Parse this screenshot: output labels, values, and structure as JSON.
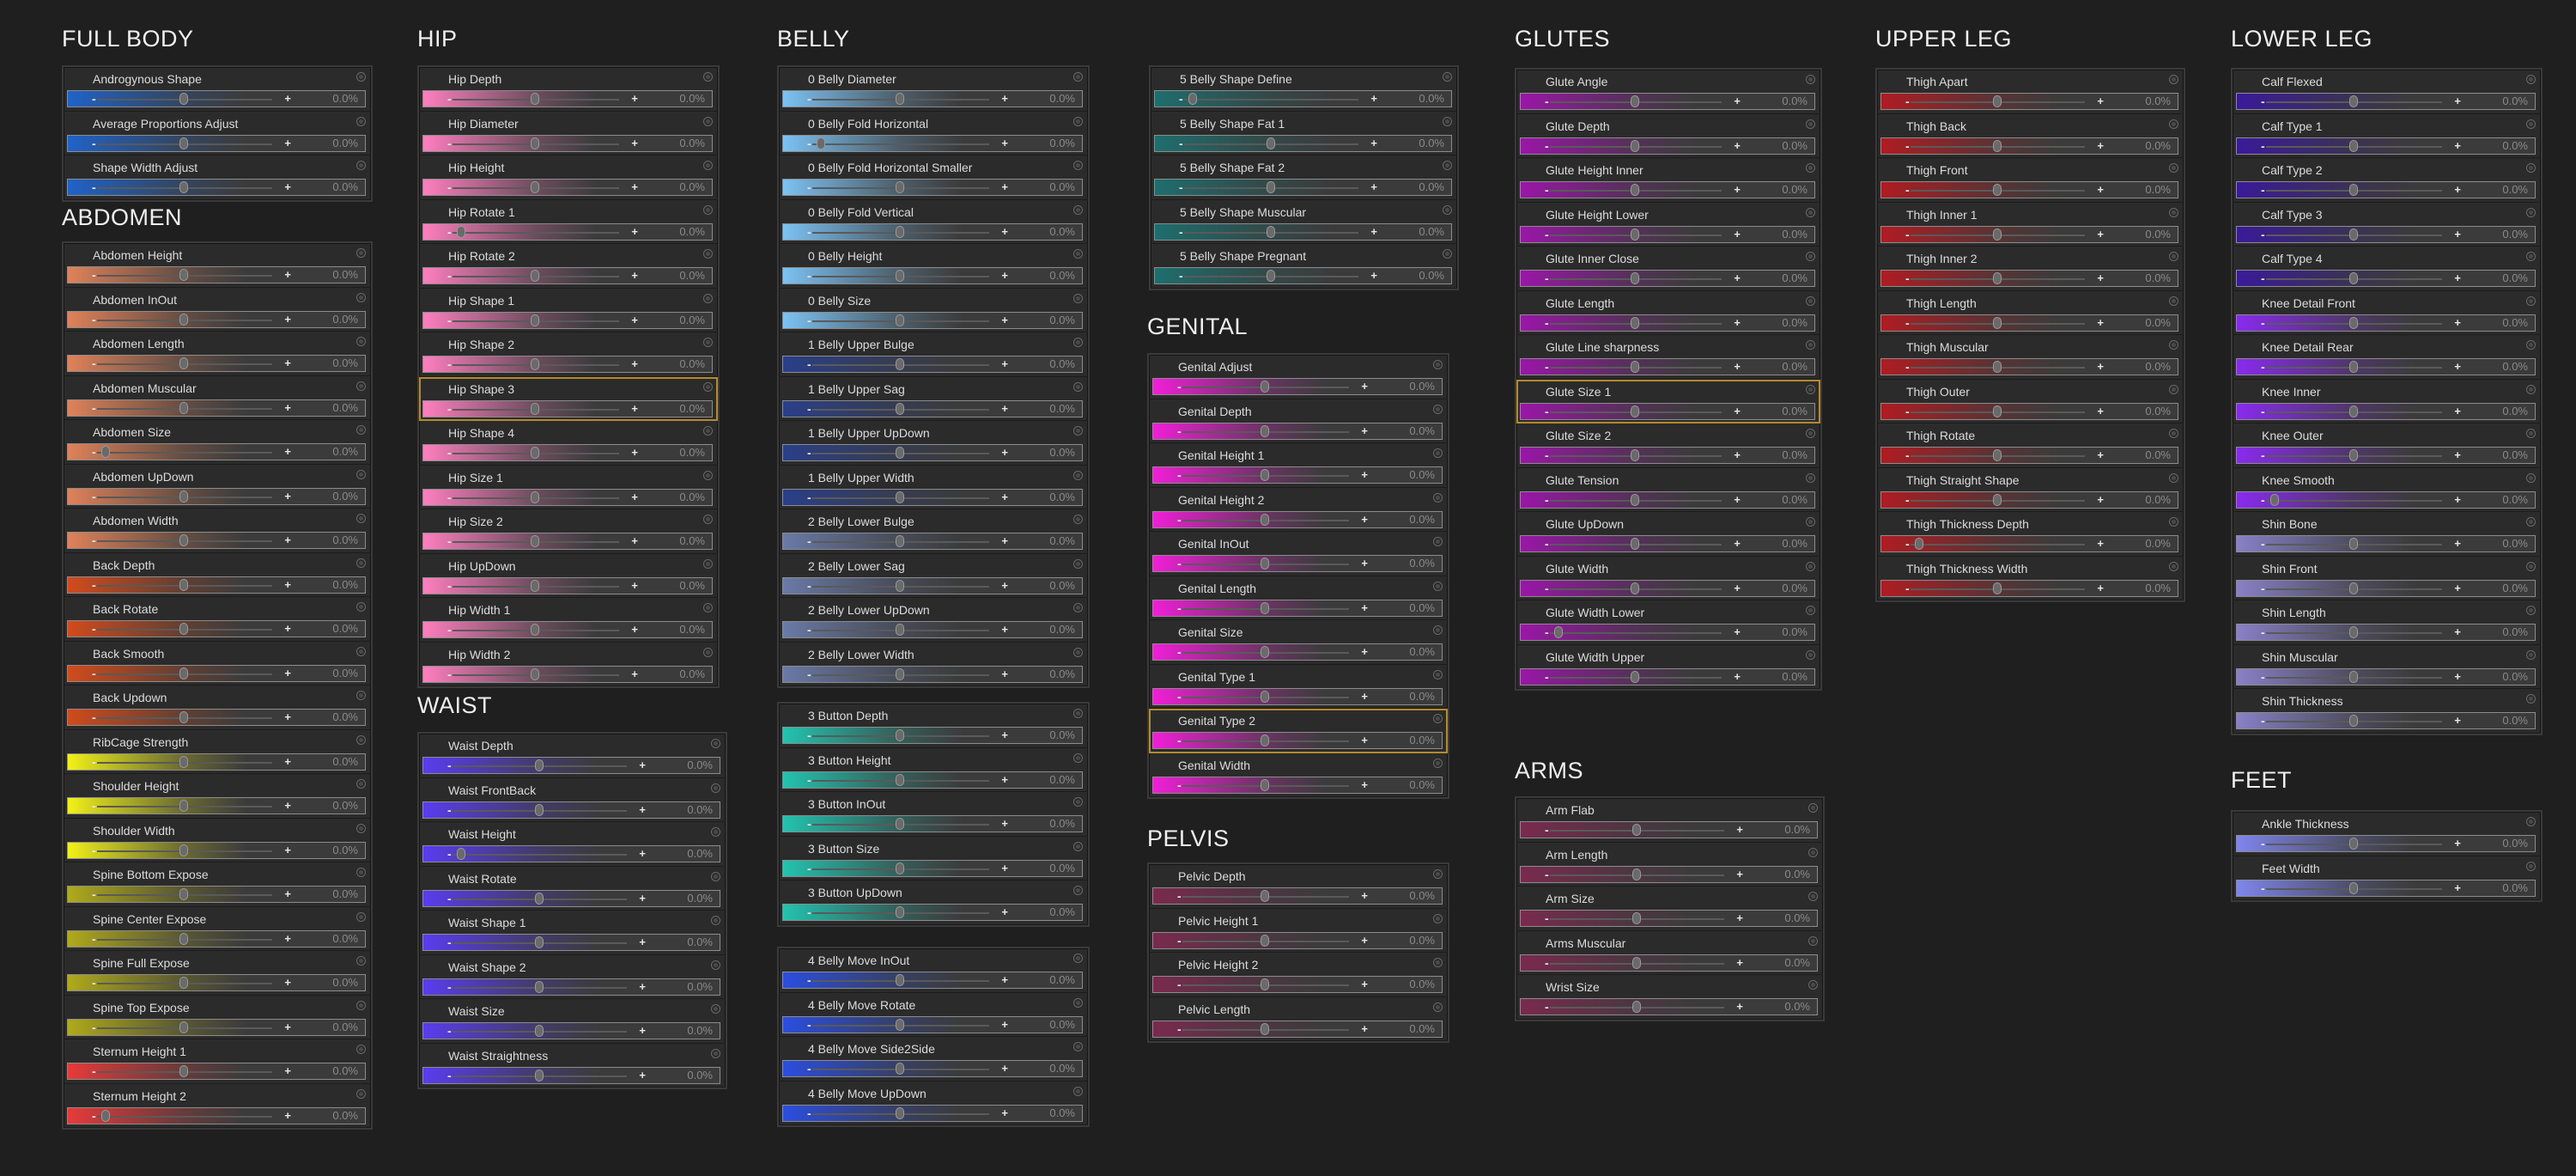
{
  "ui": {
    "default_value": "0.0%"
  },
  "groups": [
    {
      "id": "full-body",
      "title": "FULL BODY",
      "color": "#1f63c9",
      "panels": [
        {
          "rows": [
            "Androgynous Shape",
            "Average Proportions Adjust",
            "Shape Width Adjust"
          ]
        }
      ]
    },
    {
      "id": "abdomen",
      "title": "ABDOMEN",
      "panels": [
        {
          "rows": [
            {
              "label": "Abdomen Height",
              "color": "#e0825a"
            },
            {
              "label": "Abdomen InOut",
              "color": "#e0825a"
            },
            {
              "label": "Abdomen Length",
              "color": "#e0825a"
            },
            {
              "label": "Abdomen Muscular",
              "color": "#e0825a"
            },
            {
              "label": "Abdomen Size",
              "color": "#e0825a"
            },
            {
              "label": "Abdomen UpDown",
              "color": "#e0825a"
            },
            {
              "label": "Abdomen Width",
              "color": "#e0825a"
            },
            {
              "label": "Back Depth",
              "color": "#d24b1c"
            },
            {
              "label": "Back Rotate",
              "color": "#d24b1c"
            },
            {
              "label": "Back Smooth",
              "color": "#d24b1c"
            },
            {
              "label": "Back Updown",
              "color": "#d24b1c"
            },
            {
              "label": "RibCage Strength",
              "color": "#f2f218"
            },
            {
              "label": "Shoulder Height",
              "color": "#f2f218"
            },
            {
              "label": "Shoulder Width",
              "color": "#f2f218"
            },
            {
              "label": "Spine Bottom Expose",
              "color": "#b0aa1a"
            },
            {
              "label": "Spine Center Expose",
              "color": "#b0aa1a"
            },
            {
              "label": "Spine Full Expose",
              "color": "#b0aa1a"
            },
            {
              "label": "Spine Top Expose",
              "color": "#b0aa1a"
            },
            {
              "label": "Sternum Height 1",
              "color": "#e83a3a"
            },
            {
              "label": "Sternum Height 2",
              "color": "#e83a3a"
            }
          ]
        }
      ]
    },
    {
      "id": "hip",
      "title": "HIP",
      "color": "#ff7fc0",
      "panels": [
        {
          "rows": [
            "Hip Depth",
            "Hip Diameter",
            "Hip Height",
            "Hip Rotate 1",
            "Hip Rotate 2",
            "Hip Shape 1",
            "Hip Shape 2",
            "Hip Shape 3",
            "Hip Shape 4",
            "Hip Size 1",
            "Hip Size 2",
            "Hip UpDown",
            "Hip Width 1",
            "Hip Width 2"
          ],
          "highlight": 7
        }
      ]
    },
    {
      "id": "waist",
      "title": "WAIST",
      "color": "#5a3cf0",
      "panels": [
        {
          "rows": [
            "Waist Depth",
            "Waist FrontBack",
            "Waist Height",
            "Waist Rotate",
            "Waist Shape 1",
            "Waist Shape 2",
            "Waist Size",
            "Waist Straightness"
          ]
        }
      ]
    },
    {
      "id": "belly",
      "title": "BELLY",
      "panels": [
        {
          "rows": [
            {
              "label": "0 Belly Diameter",
              "color": "#7cc3f5"
            },
            {
              "label": "0 Belly Fold Horizontal",
              "color": "#7cc3f5"
            },
            {
              "label": "0 Belly Fold Horizontal Smaller",
              "color": "#7cc3f5"
            },
            {
              "label": "0 Belly Fold Vertical",
              "color": "#7cc3f5"
            },
            {
              "label": "0 Belly Height",
              "color": "#7cc3f5"
            },
            {
              "label": "0 Belly Size",
              "color": "#7cc3f5"
            },
            {
              "label": "1 Belly Upper Bulge",
              "color": "#2a3f8a"
            },
            {
              "label": "1 Belly Upper Sag",
              "color": "#2a3f8a"
            },
            {
              "label": "1 Belly Upper UpDown",
              "color": "#2a3f8a"
            },
            {
              "label": "1 Belly Upper Width",
              "color": "#2a3f8a"
            },
            {
              "label": "2 Belly Lower Bulge",
              "color": "#6a7aa8"
            },
            {
              "label": "2 Belly Lower Sag",
              "color": "#6a7aa8"
            },
            {
              "label": "2 Belly Lower UpDown",
              "color": "#6a7aa8"
            },
            {
              "label": "2 Belly Lower Width",
              "color": "#6a7aa8"
            }
          ]
        },
        {
          "rows": [
            {
              "label": "3 Button Depth",
              "color": "#22c4b0"
            },
            {
              "label": "3 Button Height",
              "color": "#22c4b0"
            },
            {
              "label": "3 Button InOut",
              "color": "#22c4b0"
            },
            {
              "label": "3 Button Size",
              "color": "#22c4b0"
            },
            {
              "label": "3 Button UpDown",
              "color": "#22c4b0"
            }
          ]
        },
        {
          "rows": [
            {
              "label": "4 Belly Move InOut",
              "color": "#2b4ee0"
            },
            {
              "label": "4 Belly Move Rotate",
              "color": "#2b4ee0"
            },
            {
              "label": "4 Belly Move Side2Side",
              "color": "#2b4ee0"
            },
            {
              "label": "4 Belly Move UpDown",
              "color": "#2b4ee0"
            }
          ]
        }
      ]
    },
    {
      "id": "belly-5",
      "title": "",
      "color": "#1e6e6e",
      "panels": [
        {
          "rows": [
            "5 Belly Shape Define",
            "5 Belly Shape Fat 1",
            "5 Belly Shape Fat 2",
            "5 Belly Shape Muscular",
            "5 Belly Shape Pregnant"
          ]
        }
      ]
    },
    {
      "id": "genital",
      "title": "GENITAL",
      "color": "#f21ed8",
      "panels": [
        {
          "rows": [
            "Genital Adjust",
            "Genital Depth",
            "Genital Height 1",
            "Genital Height 2",
            "Genital InOut",
            "Genital Length",
            "Genital Size",
            "Genital Type 1",
            "Genital Type 2",
            "Genital Width"
          ],
          "highlight": 8
        }
      ]
    },
    {
      "id": "pelvis",
      "title": "PELVIS",
      "color": "#7a2a4e",
      "panels": [
        {
          "rows": [
            "Pelvic Depth",
            "Pelvic Height 1",
            "Pelvic Height 2",
            "Pelvic Length"
          ]
        }
      ]
    },
    {
      "id": "glutes",
      "title": "GLUTES",
      "color": "#9a16a8",
      "panels": [
        {
          "rows": [
            "Glute Angle",
            "Glute Depth",
            "Glute Height Inner",
            "Glute Height Lower",
            "Glute Inner Close",
            "Glute Length",
            "Glute Line sharpness",
            "Glute Size 1",
            "Glute Size 2",
            "Glute Tension",
            "Glute UpDown",
            "Glute Width",
            "Glute Width Lower",
            "Glute Width Upper"
          ],
          "highlight": 7
        }
      ]
    },
    {
      "id": "arms",
      "title": "ARMS",
      "color": "#7a2a4e",
      "panels": [
        {
          "rows": [
            "Arm Flab",
            "Arm Length",
            "Arm Size",
            "Arms Muscular",
            "Wrist Size"
          ]
        }
      ]
    },
    {
      "id": "upper-leg",
      "title": "UPPER LEG",
      "color": "#b01c22",
      "panels": [
        {
          "rows": [
            "Thigh Apart",
            "Thigh Back",
            "Thigh Front",
            "Thigh Inner 1",
            "Thigh Inner 2",
            "Thigh Length",
            "Thigh Muscular",
            "Thigh Outer",
            "Thigh Rotate",
            "Thigh Straight Shape",
            "Thigh Thickness Depth",
            "Thigh Thickness Width"
          ]
        }
      ]
    },
    {
      "id": "lower-leg",
      "title": "LOWER LEG",
      "panels": [
        {
          "rows": [
            {
              "label": "Calf Flexed",
              "color": "#3a1a9a"
            },
            {
              "label": "Calf Type 1",
              "color": "#3a1a9a"
            },
            {
              "label": "Calf Type 2",
              "color": "#3a1a9a"
            },
            {
              "label": "Calf Type 3",
              "color": "#3a1a9a"
            },
            {
              "label": "Calf Type 4",
              "color": "#3a1a9a"
            },
            {
              "label": "Knee Detail Front",
              "color": "#8a2af0"
            },
            {
              "label": "Knee Detail Rear",
              "color": "#8a2af0"
            },
            {
              "label": "Knee Inner",
              "color": "#8a2af0"
            },
            {
              "label": "Knee Outer",
              "color": "#8a2af0"
            },
            {
              "label": "Knee Smooth",
              "color": "#8a2af0"
            },
            {
              "label": "Shin Bone",
              "color": "#8a80c8"
            },
            {
              "label": "Shin Front",
              "color": "#8a80c8"
            },
            {
              "label": "Shin Length",
              "color": "#8a80c8"
            },
            {
              "label": "Shin Muscular",
              "color": "#8a80c8"
            },
            {
              "label": "Shin Thickness",
              "color": "#8a80c8"
            }
          ]
        }
      ]
    },
    {
      "id": "feet",
      "title": "FEET",
      "color": "#7f86ee",
      "panels": [
        {
          "rows": [
            "Ankle Thickness",
            "Feet Width"
          ]
        }
      ]
    }
  ]
}
